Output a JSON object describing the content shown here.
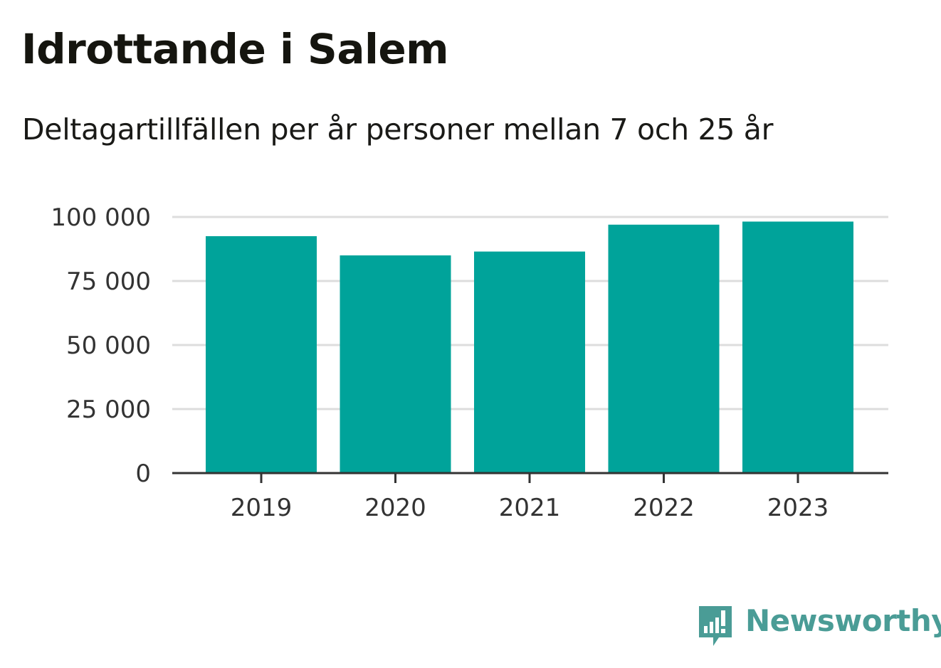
{
  "header": {
    "title": "Idrottande i Salem",
    "subtitle": "Deltagartillfällen per år personer mellan 7 och 25 år"
  },
  "brand": {
    "name": "Newsworthy",
    "icon": "newsworthy-logo-icon",
    "color": "#4a9c96"
  },
  "colors": {
    "bar": "#00a39a",
    "grid": "#dddddd",
    "axis": "#333333"
  },
  "chart_data": {
    "type": "bar",
    "categories": [
      "2019",
      "2020",
      "2021",
      "2022",
      "2023"
    ],
    "values": [
      92500,
      85000,
      86500,
      97000,
      98200
    ],
    "ylim": [
      0,
      100000
    ],
    "yticks": [
      0,
      25000,
      50000,
      75000,
      100000
    ],
    "ytick_labels": [
      "0",
      "25 000",
      "50 000",
      "75 000",
      "100 000"
    ],
    "grid": true,
    "legend": "none"
  }
}
